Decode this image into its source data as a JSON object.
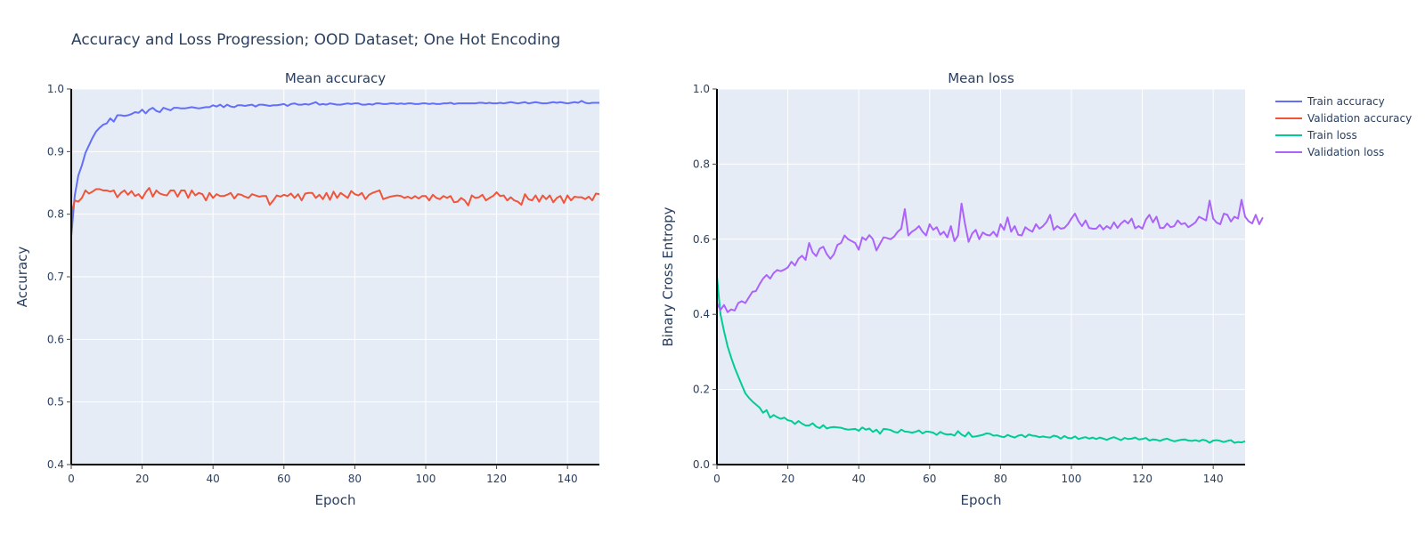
{
  "figure": {
    "title": "Accuracy and Loss Progression; OOD Dataset; One Hot Encoding"
  },
  "legend": {
    "placement": "right",
    "items": [
      {
        "label": "Train accuracy",
        "color": "#636efa"
      },
      {
        "label": "Validation accuracy",
        "color": "#ef553b"
      },
      {
        "label": "Train loss",
        "color": "#00cc96"
      },
      {
        "label": "Validation loss",
        "color": "#ab63fa"
      }
    ]
  },
  "chart_data": [
    {
      "type": "line",
      "title": "Mean accuracy",
      "xlabel": "Epoch",
      "ylabel": "Accuracy",
      "xlim": [
        0,
        149
      ],
      "ylim": [
        0.4,
        1.0
      ],
      "x_ticks": [
        0,
        20,
        40,
        60,
        80,
        100,
        120,
        140
      ],
      "y_ticks": [
        0.4,
        0.5,
        0.6,
        0.7,
        0.8,
        0.9,
        1.0
      ],
      "y_tick_labels": [
        "0.4",
        "0.5",
        "0.6",
        "0.7",
        "0.8",
        "0.9",
        "1.0"
      ],
      "grid": true,
      "series": [
        {
          "name": "Train accuracy",
          "color": "#636efa",
          "x_start": 0,
          "x_step": 1,
          "values": [
            0.765,
            0.83,
            0.862,
            0.878,
            0.898,
            0.91,
            0.922,
            0.932,
            0.938,
            0.943,
            0.945,
            0.953,
            0.948,
            0.958,
            0.958,
            0.957,
            0.958,
            0.96,
            0.963,
            0.962,
            0.967,
            0.961,
            0.967,
            0.97,
            0.965,
            0.963,
            0.97,
            0.968,
            0.966,
            0.97,
            0.97,
            0.969,
            0.969,
            0.97,
            0.971,
            0.97,
            0.969,
            0.97,
            0.971,
            0.971,
            0.974,
            0.972,
            0.975,
            0.971,
            0.975,
            0.972,
            0.971,
            0.974,
            0.974,
            0.973,
            0.974,
            0.975,
            0.972,
            0.975,
            0.975,
            0.974,
            0.973,
            0.974,
            0.974,
            0.975,
            0.976,
            0.973,
            0.976,
            0.977,
            0.975,
            0.975,
            0.976,
            0.975,
            0.977,
            0.979,
            0.975,
            0.976,
            0.975,
            0.977,
            0.976,
            0.975,
            0.975,
            0.976,
            0.977,
            0.976,
            0.977,
            0.977,
            0.975,
            0.975,
            0.976,
            0.975,
            0.977,
            0.977,
            0.976,
            0.976,
            0.977,
            0.977,
            0.976,
            0.977,
            0.976,
            0.977,
            0.977,
            0.976,
            0.976,
            0.977,
            0.977,
            0.976,
            0.977,
            0.976,
            0.976,
            0.977,
            0.977,
            0.978,
            0.976,
            0.977,
            0.977,
            0.977,
            0.977,
            0.977,
            0.977,
            0.978,
            0.978,
            0.977,
            0.978,
            0.977,
            0.977,
            0.978,
            0.977,
            0.978,
            0.979,
            0.978,
            0.977,
            0.978,
            0.979,
            0.977,
            0.978,
            0.979,
            0.978,
            0.977,
            0.977,
            0.978,
            0.979,
            0.978,
            0.979,
            0.978,
            0.977,
            0.978,
            0.979,
            0.978,
            0.981,
            0.978,
            0.977,
            0.978,
            0.978,
            0.978
          ]
        },
        {
          "name": "Validation accuracy",
          "color": "#ef553b",
          "x_start": 0,
          "x_step": 1,
          "values": [
            0.8,
            0.822,
            0.82,
            0.826,
            0.838,
            0.833,
            0.836,
            0.84,
            0.84,
            0.838,
            0.838,
            0.836,
            0.838,
            0.827,
            0.834,
            0.838,
            0.831,
            0.837,
            0.829,
            0.832,
            0.825,
            0.835,
            0.842,
            0.828,
            0.838,
            0.833,
            0.831,
            0.83,
            0.838,
            0.838,
            0.828,
            0.838,
            0.838,
            0.826,
            0.838,
            0.83,
            0.834,
            0.832,
            0.822,
            0.834,
            0.826,
            0.832,
            0.829,
            0.829,
            0.831,
            0.834,
            0.825,
            0.832,
            0.831,
            0.828,
            0.826,
            0.832,
            0.83,
            0.828,
            0.829,
            0.829,
            0.815,
            0.822,
            0.83,
            0.828,
            0.831,
            0.829,
            0.833,
            0.826,
            0.832,
            0.822,
            0.833,
            0.834,
            0.834,
            0.826,
            0.831,
            0.824,
            0.834,
            0.823,
            0.836,
            0.826,
            0.834,
            0.83,
            0.826,
            0.837,
            0.832,
            0.83,
            0.834,
            0.824,
            0.831,
            0.834,
            0.836,
            0.838,
            0.824,
            0.826,
            0.828,
            0.829,
            0.83,
            0.829,
            0.826,
            0.828,
            0.825,
            0.829,
            0.825,
            0.829,
            0.829,
            0.822,
            0.831,
            0.826,
            0.824,
            0.829,
            0.826,
            0.829,
            0.819,
            0.82,
            0.826,
            0.822,
            0.814,
            0.83,
            0.826,
            0.827,
            0.831,
            0.822,
            0.826,
            0.829,
            0.835,
            0.829,
            0.83,
            0.822,
            0.827,
            0.822,
            0.82,
            0.815,
            0.832,
            0.824,
            0.822,
            0.83,
            0.82,
            0.83,
            0.824,
            0.83,
            0.819,
            0.826,
            0.829,
            0.818,
            0.83,
            0.822,
            0.828,
            0.827,
            0.827,
            0.824,
            0.828,
            0.822,
            0.833,
            0.832
          ]
        }
      ]
    },
    {
      "type": "line",
      "title": "Mean loss",
      "xlabel": "Epoch",
      "ylabel": "Binary Cross Entropy",
      "xlim": [
        0,
        149
      ],
      "ylim": [
        0.0,
        1.0
      ],
      "x_ticks": [
        0,
        20,
        40,
        60,
        80,
        100,
        120,
        140
      ],
      "y_ticks": [
        0,
        0.2,
        0.4,
        0.6,
        0.8,
        1.0
      ],
      "y_tick_labels": [
        "0.0",
        "0.2",
        "0.4",
        "0.6",
        "0.8",
        "1.0"
      ],
      "grid": true,
      "series": [
        {
          "name": "Train loss",
          "color": "#00cc96",
          "x_start": 0,
          "x_step": 1,
          "values": [
            0.5,
            0.4,
            0.355,
            0.315,
            0.285,
            0.258,
            0.235,
            0.212,
            0.19,
            0.178,
            0.168,
            0.16,
            0.152,
            0.138,
            0.145,
            0.125,
            0.132,
            0.126,
            0.122,
            0.125,
            0.118,
            0.116,
            0.108,
            0.116,
            0.109,
            0.104,
            0.104,
            0.11,
            0.101,
            0.097,
            0.105,
            0.096,
            0.099,
            0.1,
            0.099,
            0.098,
            0.095,
            0.093,
            0.094,
            0.095,
            0.09,
            0.099,
            0.093,
            0.096,
            0.087,
            0.093,
            0.082,
            0.095,
            0.094,
            0.092,
            0.087,
            0.085,
            0.093,
            0.088,
            0.087,
            0.085,
            0.087,
            0.091,
            0.083,
            0.088,
            0.087,
            0.085,
            0.079,
            0.087,
            0.082,
            0.08,
            0.081,
            0.077,
            0.089,
            0.08,
            0.075,
            0.086,
            0.074,
            0.075,
            0.077,
            0.079,
            0.083,
            0.082,
            0.077,
            0.078,
            0.075,
            0.073,
            0.079,
            0.075,
            0.072,
            0.077,
            0.079,
            0.073,
            0.08,
            0.077,
            0.076,
            0.073,
            0.075,
            0.073,
            0.072,
            0.077,
            0.075,
            0.069,
            0.076,
            0.071,
            0.07,
            0.075,
            0.068,
            0.071,
            0.073,
            0.069,
            0.072,
            0.068,
            0.072,
            0.069,
            0.066,
            0.07,
            0.073,
            0.069,
            0.065,
            0.071,
            0.068,
            0.069,
            0.072,
            0.067,
            0.068,
            0.071,
            0.064,
            0.067,
            0.066,
            0.063,
            0.067,
            0.069,
            0.065,
            0.062,
            0.064,
            0.066,
            0.067,
            0.064,
            0.063,
            0.065,
            0.062,
            0.066,
            0.064,
            0.058,
            0.064,
            0.065,
            0.063,
            0.06,
            0.063,
            0.065,
            0.058,
            0.06,
            0.059,
            0.062
          ]
        },
        {
          "name": "Validation loss",
          "color": "#ab63fa",
          "x_start": 0,
          "x_step": 1,
          "values": [
            0.43,
            0.412,
            0.425,
            0.406,
            0.413,
            0.41,
            0.43,
            0.435,
            0.43,
            0.445,
            0.46,
            0.462,
            0.48,
            0.495,
            0.505,
            0.495,
            0.51,
            0.518,
            0.515,
            0.519,
            0.525,
            0.54,
            0.53,
            0.548,
            0.556,
            0.545,
            0.59,
            0.565,
            0.555,
            0.575,
            0.58,
            0.56,
            0.548,
            0.56,
            0.585,
            0.59,
            0.61,
            0.6,
            0.595,
            0.59,
            0.572,
            0.605,
            0.598,
            0.611,
            0.6,
            0.57,
            0.588,
            0.605,
            0.603,
            0.6,
            0.607,
            0.62,
            0.628,
            0.68,
            0.61,
            0.62,
            0.626,
            0.635,
            0.62,
            0.61,
            0.64,
            0.625,
            0.632,
            0.612,
            0.62,
            0.605,
            0.635,
            0.595,
            0.61,
            0.695,
            0.64,
            0.593,
            0.615,
            0.625,
            0.6,
            0.618,
            0.612,
            0.61,
            0.62,
            0.607,
            0.64,
            0.625,
            0.658,
            0.62,
            0.635,
            0.612,
            0.61,
            0.632,
            0.625,
            0.62,
            0.64,
            0.628,
            0.635,
            0.646,
            0.665,
            0.625,
            0.635,
            0.628,
            0.63,
            0.64,
            0.655,
            0.668,
            0.648,
            0.635,
            0.65,
            0.63,
            0.628,
            0.628,
            0.638,
            0.626,
            0.635,
            0.628,
            0.645,
            0.63,
            0.642,
            0.65,
            0.642,
            0.655,
            0.629,
            0.635,
            0.628,
            0.652,
            0.665,
            0.645,
            0.66,
            0.63,
            0.63,
            0.642,
            0.632,
            0.635,
            0.65,
            0.64,
            0.643,
            0.632,
            0.638,
            0.645,
            0.66,
            0.655,
            0.65,
            0.703,
            0.655,
            0.644,
            0.64,
            0.668,
            0.665,
            0.647,
            0.66,
            0.655,
            0.705,
            0.66,
            0.648,
            0.642,
            0.665,
            0.64,
            0.658
          ]
        }
      ]
    }
  ]
}
